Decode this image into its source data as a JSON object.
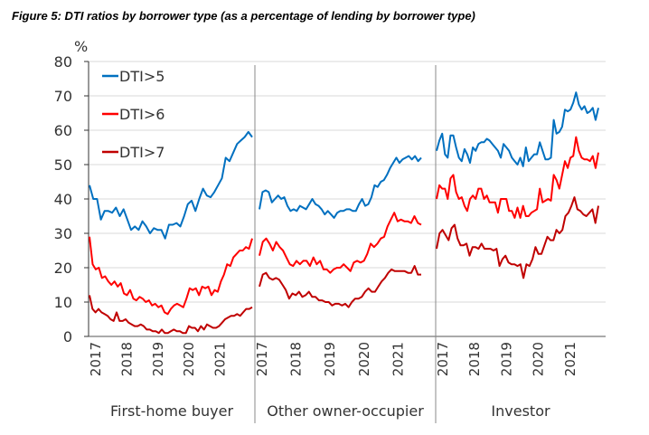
{
  "chart_data": {
    "type": "line",
    "title": "Figure 5: DTI ratios by borrower type (as a percentage of lending by borrower type)",
    "ylabel": "%",
    "ylim": [
      0,
      80
    ],
    "yticks": [
      0,
      10,
      20,
      30,
      40,
      50,
      60,
      70,
      80
    ],
    "grid": true,
    "legend_placement": "top-left",
    "x_tick_labels": [
      "2017",
      "2018",
      "2019",
      "2020",
      "2021"
    ],
    "series_styles": [
      {
        "name": "DTI>5",
        "color": "#0070C0"
      },
      {
        "name": "DTI>6",
        "color": "#FF0000"
      },
      {
        "name": "DTI>7",
        "color": "#C00000"
      }
    ],
    "panels": [
      {
        "name": "First-home buyer",
        "series": [
          {
            "name": "DTI>5",
            "values": [
              44,
              40,
              40,
              34,
              36.5,
              36.5,
              36,
              37.5,
              35,
              37,
              34,
              31,
              32,
              31,
              33.5,
              32,
              30,
              31.5,
              31,
              31,
              28.5,
              32.5,
              32.5,
              33,
              32,
              35,
              38.5,
              39.5,
              36.5,
              40,
              43,
              41,
              40.5,
              42,
              44,
              46,
              52,
              51,
              53.5,
              56,
              57,
              58,
              59.5,
              58
            ]
          },
          {
            "name": "DTI>6",
            "values": [
              29,
              21,
              19.5,
              20,
              17,
              17.5,
              16,
              15,
              16,
              14.5,
              15.5,
              12.5,
              12,
              13.5,
              11,
              10.5,
              11.5,
              11,
              10,
              10.5,
              9,
              9.5,
              8.5,
              9,
              7,
              6.5,
              8,
              9,
              9.5,
              9,
              8.5,
              11,
              14,
              13.5,
              14,
              12,
              14.5,
              14,
              14.5,
              12,
              13.5,
              13,
              16,
              18,
              21,
              20.5,
              23,
              24,
              25,
              25,
              26,
              25.5,
              28.5
            ]
          },
          {
            "name": "DTI>7",
            "values": [
              12,
              8,
              7,
              8,
              7,
              6.5,
              6,
              5,
              4.5,
              7,
              4.5,
              4.5,
              5,
              4,
              3.5,
              3,
              3,
              3.5,
              3,
              2,
              2,
              1.5,
              1.5,
              1,
              2,
              1,
              1,
              1.5,
              2,
              1.5,
              1.5,
              1,
              1,
              3,
              2.5,
              2.5,
              1.5,
              3,
              2,
              3.5,
              3,
              2.5,
              2.5,
              3,
              4,
              5,
              5.5,
              6,
              6,
              6.5,
              6,
              7,
              8,
              8,
              8.5
            ]
          }
        ]
      },
      {
        "name": "Other owner-occupier",
        "series": [
          {
            "name": "DTI>5",
            "values": [
              37,
              42,
              42.5,
              42,
              39,
              40,
              41,
              40,
              40.5,
              38,
              36.5,
              37,
              36.5,
              38,
              37.5,
              37,
              38.5,
              40,
              38.5,
              38,
              37,
              35.5,
              36.5,
              35.5,
              34.5,
              36,
              36.5,
              36.5,
              37,
              37,
              36.5,
              36.5,
              38.5,
              40,
              38,
              38.5,
              40.5,
              44,
              43.5,
              45,
              45.5,
              47,
              49,
              50.5,
              52,
              50.5,
              51.5,
              52,
              52.5,
              51.5,
              52.5,
              51,
              52
            ]
          },
          {
            "name": "DTI>6",
            "values": [
              23.5,
              27.5,
              28.5,
              27,
              25,
              27.5,
              26,
              25,
              23,
              21,
              20.5,
              22,
              21,
              22,
              22,
              20.5,
              23,
              21,
              22,
              19.5,
              19.5,
              18.5,
              19.5,
              20,
              20,
              21,
              20,
              19,
              21.5,
              22,
              21.5,
              22,
              24,
              27,
              26,
              27,
              28.5,
              29,
              32,
              34,
              36,
              33.5,
              34,
              33.5,
              33.5,
              33,
              35,
              33,
              32.5
            ]
          },
          {
            "name": "DTI>7",
            "values": [
              14.5,
              18,
              18.5,
              17,
              16.5,
              17,
              16.5,
              15,
              13.5,
              11,
              12.5,
              12,
              13,
              11.5,
              12,
              13,
              11.5,
              11.5,
              10.5,
              10.5,
              10,
              10,
              9,
              9.5,
              9.5,
              9,
              9.5,
              8.5,
              10,
              11,
              11,
              11.5,
              13,
              14,
              13,
              13,
              14.5,
              16,
              17,
              18.5,
              19.5,
              19,
              19,
              19,
              19,
              18.5,
              18.5,
              20.5,
              18,
              18
            ]
          }
        ]
      },
      {
        "name": "Investor",
        "series": [
          {
            "name": "DTI>5",
            "values": [
              54,
              57,
              59,
              53,
              52,
              58.5,
              58.5,
              55,
              52,
              51,
              54.5,
              53,
              50.5,
              55,
              54,
              56,
              56.5,
              56.5,
              57.5,
              57,
              56,
              55,
              54,
              52,
              56,
              55,
              54,
              52,
              51,
              50,
              52,
              49.5,
              55,
              51,
              52,
              53,
              53,
              56.5,
              54,
              51.5,
              51.5,
              52,
              63,
              59,
              59.5,
              61,
              66,
              65.5,
              66,
              68,
              71,
              67.5,
              66,
              67,
              65,
              65.5,
              66.5,
              63,
              66.5
            ]
          },
          {
            "name": "DTI>6",
            "values": [
              40,
              44,
              43,
              43,
              40,
              46,
              47,
              42,
              40,
              40.5,
              38,
              36.5,
              40,
              41,
              40,
              43,
              43,
              40,
              41,
              39,
              39,
              39,
              36,
              40,
              40,
              40,
              36.5,
              36.5,
              34.5,
              37.5,
              34.5,
              38,
              35,
              35,
              36,
              36.5,
              37,
              43,
              39,
              39.5,
              40,
              39.5,
              47,
              45.5,
              43,
              47,
              51,
              49,
              52,
              52.5,
              58,
              54,
              52,
              51.5,
              51.5,
              51,
              52.5,
              49,
              53.5
            ]
          },
          {
            "name": "DTI>7",
            "values": [
              25.5,
              30,
              31,
              29.5,
              28,
              31.5,
              32.5,
              28.5,
              26.5,
              26.5,
              27,
              23.5,
              26,
              26,
              25.5,
              27,
              25.5,
              25.5,
              25.5,
              25,
              25.5,
              20.5,
              22.5,
              23.5,
              21.5,
              21,
              21,
              20.5,
              21,
              17,
              21,
              20.5,
              22.5,
              26,
              24,
              24,
              26.5,
              29,
              28,
              28,
              31,
              30,
              31,
              35,
              36,
              38,
              40.5,
              37,
              36.5,
              35.5,
              35,
              36,
              37,
              33,
              38
            ]
          }
        ]
      }
    ]
  }
}
